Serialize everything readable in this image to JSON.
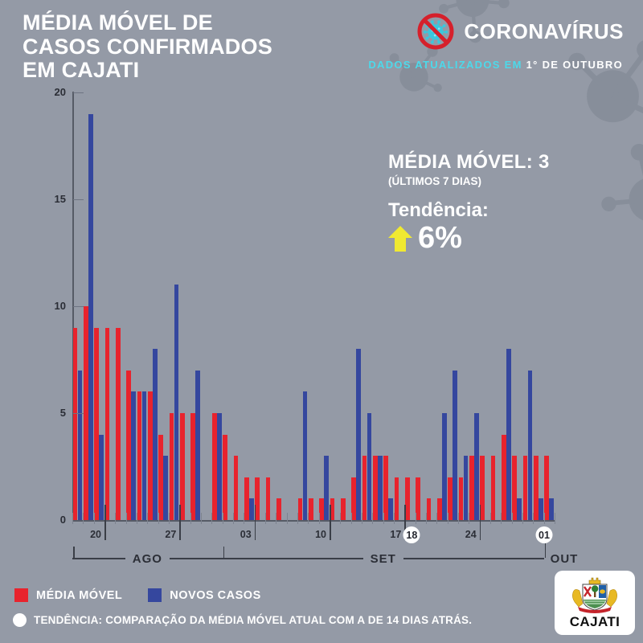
{
  "header": {
    "title_lines": [
      "MÉDIA MÓVEL DE",
      "CASOS CONFIRMADOS",
      "EM CAJATI"
    ],
    "brand": "CORONAVÍRUS",
    "updated_prefix": "DADOS ATUALIZADOS EM ",
    "updated_date": "1° DE OUTUBRO"
  },
  "stats": {
    "moving_average_label": "MÉDIA MÓVEL: 3",
    "moving_average_sub": "(ÚLTIMOS 7 DIAS)",
    "trend_label": "Tendência:",
    "trend_value": "6%",
    "trend_direction": "up"
  },
  "chart_data": {
    "type": "bar",
    "x_description": "dias de 18 de agosto a 1 de outubro",
    "series": [
      {
        "name": "MÉDIA MÓVEL",
        "color": "#e8232d",
        "values": [
          9,
          10,
          9,
          9,
          9,
          7,
          6,
          6,
          4,
          5,
          5,
          5,
          0,
          5,
          4,
          3,
          2,
          2,
          2,
          1,
          0,
          1,
          1,
          1,
          1,
          1,
          2,
          3,
          3,
          3,
          2,
          2,
          2,
          1,
          1,
          2,
          2,
          3,
          3,
          3,
          4,
          3,
          3,
          3,
          3
        ]
      },
      {
        "name": "NOVOS CASOS",
        "color": "#35479e",
        "values": [
          7,
          19,
          4,
          0,
          0,
          6,
          6,
          8,
          3,
          11,
          0,
          7,
          0,
          5,
          0,
          0,
          1,
          0,
          0,
          0,
          0,
          6,
          0,
          3,
          0,
          0,
          8,
          5,
          3,
          1,
          0,
          0,
          0,
          0,
          5,
          7,
          3,
          5,
          0,
          0,
          8,
          1,
          7,
          1,
          1
        ]
      }
    ],
    "ylim": [
      0,
      20
    ],
    "y_ticks": [
      0,
      5,
      10,
      15,
      20
    ],
    "grid": "short-stubs-on-y-axis",
    "x_tick_labels": [
      {
        "label": "20",
        "after_day": 2,
        "circled": false
      },
      {
        "label": "27",
        "after_day": 9,
        "circled": false
      },
      {
        "label": "03",
        "after_day": 16,
        "circled": false
      },
      {
        "label": "10",
        "after_day": 23,
        "circled": false
      },
      {
        "label": "17",
        "after_day": 30,
        "circled": false
      },
      {
        "label": "18",
        "after_day": 30,
        "circled": true,
        "dx": 9
      },
      {
        "label": "24",
        "after_day": 37,
        "circled": false
      },
      {
        "label": "01",
        "after_day": 44,
        "circled": true,
        "dx": -13
      }
    ],
    "month_groups": [
      {
        "label": "AGO",
        "from_day": 0,
        "to_day": 13
      },
      {
        "label": "SET",
        "from_day": 14,
        "to_day": 43
      },
      {
        "label": "OUT",
        "from_day": 44,
        "to_day": 44
      }
    ],
    "legend_position": "bottom-left"
  },
  "legend": [
    {
      "label": "MÉDIA MÓVEL",
      "color": "#e8232d"
    },
    {
      "label": "NOVOS CASOS",
      "color": "#35479e"
    }
  ],
  "footnote": "TENDÊNCIA: COMPARAÇÃO DA MÉDIA MÓVEL ATUAL COM A DE 14 DIAS ATRÁS.",
  "logo_card": {
    "city": "CAJATI"
  },
  "colors": {
    "background": "#949aa6",
    "bar_red": "#e8232d",
    "bar_blue": "#35479e",
    "cyan_text": "#4cd9ea",
    "yellow_arrow": "#f0e931",
    "dark_text": "#2b2e36",
    "white": "#ffffff",
    "no_sign_red": "#d6202b",
    "virus_teal": "#3cc7dc"
  }
}
